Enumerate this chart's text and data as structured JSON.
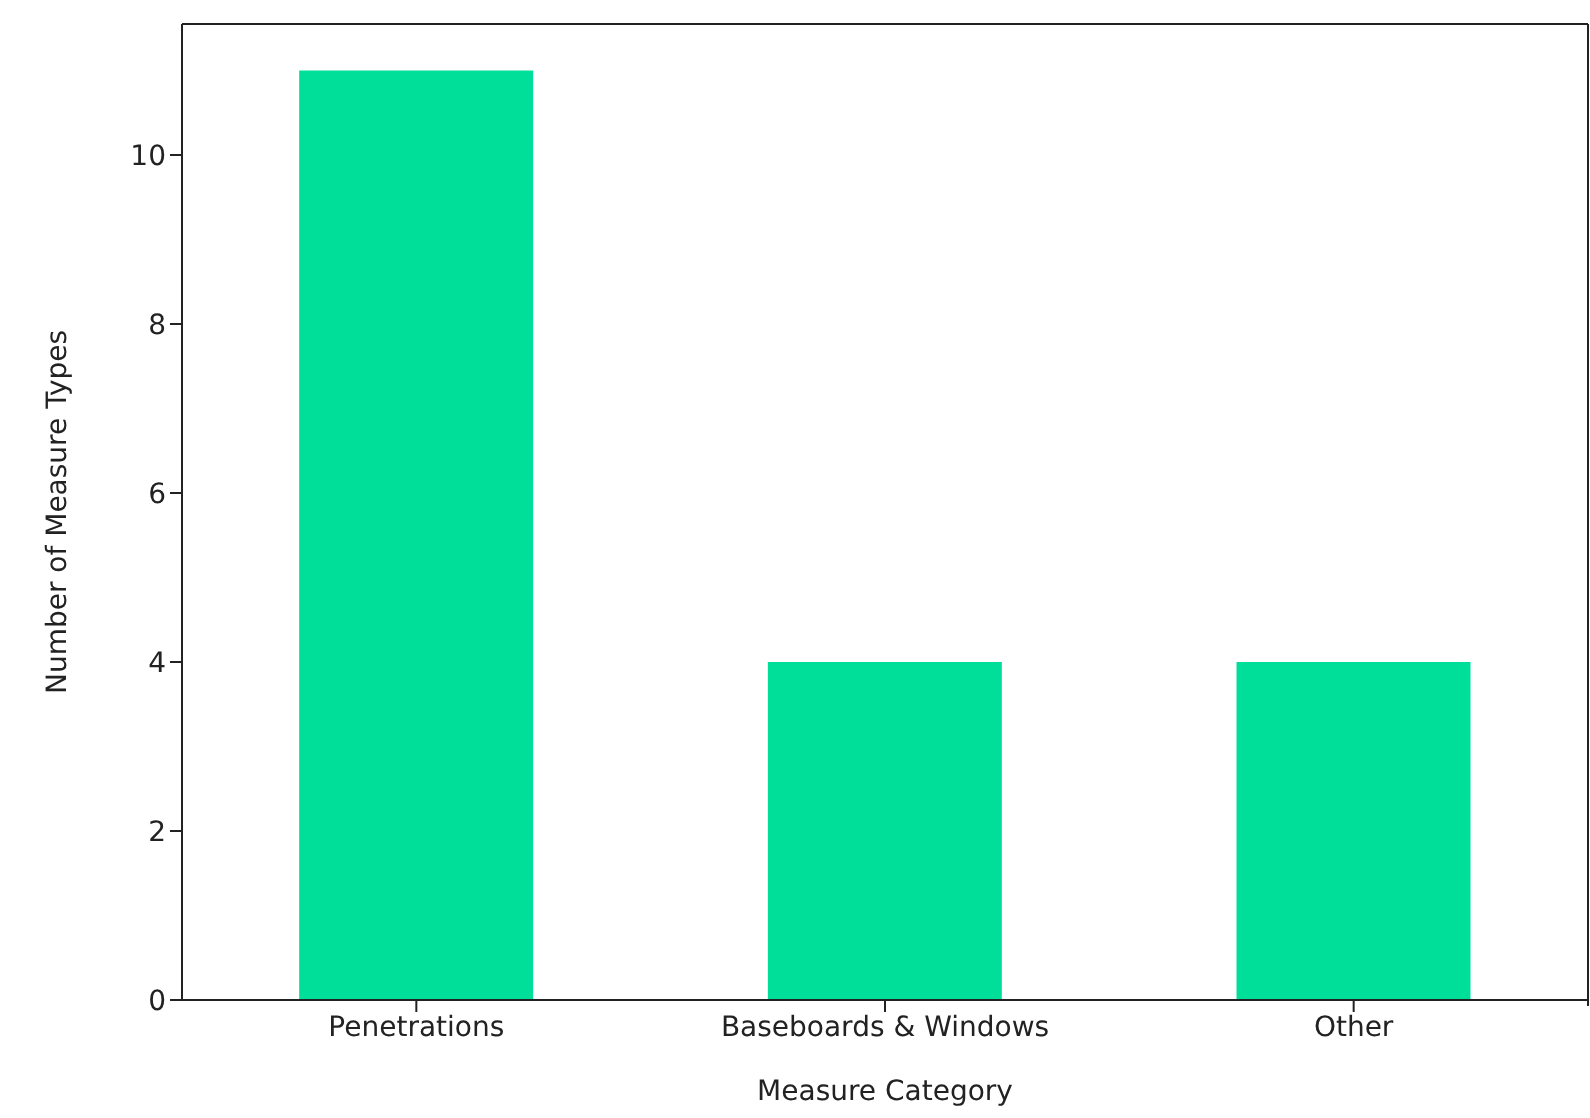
{
  "chart_data": {
    "type": "bar",
    "xlabel": "Measure Category",
    "ylabel": "Number of Measure Types",
    "categories": [
      "Penetrations",
      "Baseboards & Windows",
      "Other"
    ],
    "values": [
      11,
      4,
      4
    ],
    "color": "#00df9a",
    "ylim": [
      0,
      11.55
    ],
    "yticks": [
      0,
      2,
      4,
      6,
      8,
      10
    ],
    "grid": false,
    "legend": false
  }
}
